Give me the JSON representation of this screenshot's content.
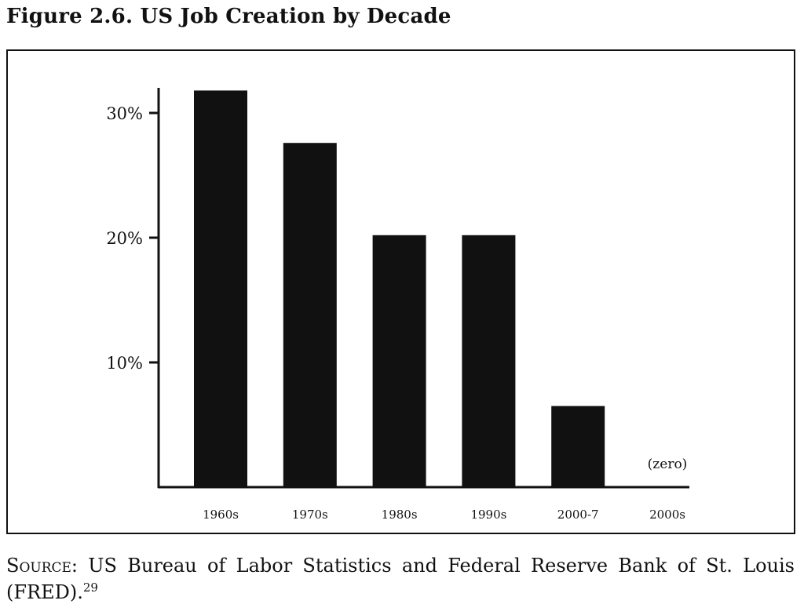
{
  "figure": {
    "title": "Figure 2.6. US Job Creation by Decade"
  },
  "chart_data": {
    "type": "bar",
    "title": "",
    "xlabel": "",
    "ylabel": "",
    "categories": [
      "1960s",
      "1970s",
      "1980s",
      "1990s",
      "2000-7",
      "2000s"
    ],
    "values": [
      31.8,
      27.6,
      20.2,
      20.2,
      6.5,
      0
    ],
    "ylim": [
      0,
      33
    ],
    "yticks": [
      {
        "value": 10,
        "label": "10%"
      },
      {
        "value": 20,
        "label": "20%"
      },
      {
        "value": 30,
        "label": "30%"
      }
    ],
    "annotations": [
      {
        "category": "2000s",
        "text": "(zero)"
      }
    ],
    "bar_color": "#111111",
    "grid": false,
    "legend": "none"
  },
  "source": {
    "label": "Source:",
    "text": " US Bureau of Labor Statistics and Federal Reserve Bank of St. Louis (FRED).",
    "footnote": "29"
  }
}
